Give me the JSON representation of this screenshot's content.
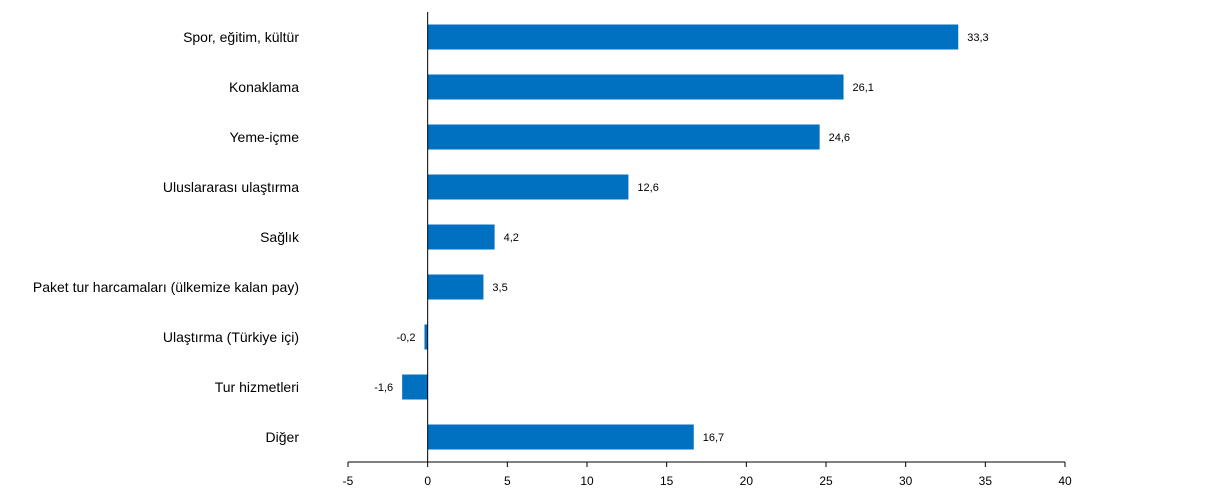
{
  "chart_data": {
    "type": "bar",
    "orientation": "horizontal",
    "categories": [
      "Spor, eğitim, kültür",
      "Konaklama",
      "Yeme-içme",
      "Uluslararası ulaştırma",
      "Sağlık",
      "Paket tur harcamaları (ülkemize kalan pay)",
      "Ulaştırma (Türkiye içi)",
      "Tur hizmetleri",
      "Diğer"
    ],
    "values": [
      33.3,
      26.1,
      24.6,
      12.6,
      4.2,
      3.5,
      -0.2,
      -1.6,
      16.7
    ],
    "value_labels": [
      "33,3",
      "26,1",
      "24,6",
      "12,6",
      "4,2",
      "3,5",
      "-0,2",
      "-1,6",
      "16,7"
    ],
    "xlim": [
      -5,
      40
    ],
    "xticks": [
      -5,
      0,
      5,
      10,
      15,
      20,
      25,
      30,
      35,
      40
    ],
    "xtick_labels": [
      "-5",
      "0",
      "5",
      "10",
      "15",
      "20",
      "25",
      "30",
      "35",
      "40"
    ],
    "title": "",
    "xlabel": "",
    "ylabel": "",
    "grid": false,
    "legend": "none",
    "bar_color": "#0070C0"
  }
}
